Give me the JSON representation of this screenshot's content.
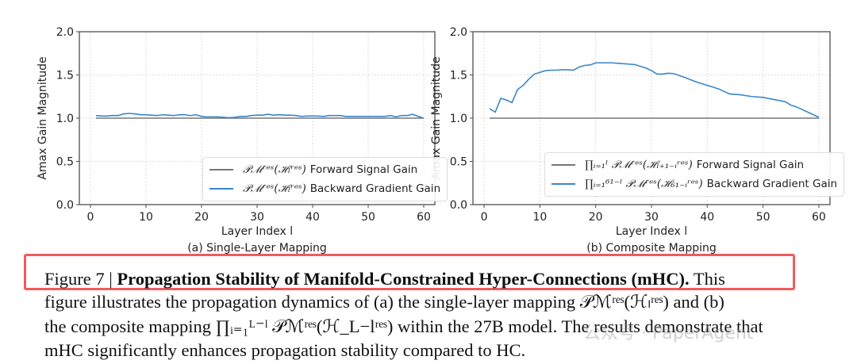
{
  "chart_data": [
    {
      "type": "line",
      "subtitle": "(a) Single-Layer Mapping",
      "xlabel": "Layer Index l",
      "ylabel": "Amax Gain Magnitude",
      "xlim": [
        -2,
        62
      ],
      "ylim": [
        0.0,
        2.0
      ],
      "xticks": [
        "0",
        "10",
        "20",
        "30",
        "40",
        "50",
        "60"
      ],
      "yticks": [
        "0.0",
        "0.5",
        "1.0",
        "1.5",
        "2.0"
      ],
      "grid": true,
      "legend_position": "lower-right",
      "series": [
        {
          "name": "Forward Signal Gain",
          "math": "𝒫ℳʳᵉˢ(ℋₗʳᵉˢ)",
          "color": "#777777",
          "x": [
            1,
            60
          ],
          "y": [
            1.0,
            1.0
          ]
        },
        {
          "name": "Backward Gradient Gain",
          "math": "𝒫ℳʳᵉˢ(ℋₗʳᵉˢ)",
          "color": "#3a86c8",
          "x": [
            1,
            2,
            3,
            4,
            5,
            6,
            7,
            8,
            9,
            10,
            11,
            12,
            13,
            14,
            15,
            16,
            17,
            18,
            19,
            20,
            21,
            22,
            23,
            24,
            25,
            26,
            27,
            28,
            29,
            30,
            31,
            32,
            33,
            34,
            35,
            36,
            37,
            38,
            39,
            40,
            41,
            42,
            43,
            44,
            45,
            46,
            47,
            48,
            49,
            50,
            51,
            52,
            53,
            54,
            55,
            56,
            57,
            58,
            59,
            60
          ],
          "y": [
            1.03,
            1.025,
            1.025,
            1.03,
            1.03,
            1.05,
            1.055,
            1.05,
            1.04,
            1.04,
            1.035,
            1.03,
            1.04,
            1.035,
            1.03,
            1.04,
            1.04,
            1.03,
            1.04,
            1.02,
            1.015,
            1.015,
            1.015,
            1.01,
            1.005,
            1.01,
            1.02,
            1.02,
            1.03,
            1.035,
            1.035,
            1.045,
            1.035,
            1.04,
            1.035,
            1.035,
            1.03,
            1.02,
            1.025,
            1.025,
            1.025,
            1.02,
            1.03,
            1.03,
            1.03,
            1.02,
            1.02,
            1.02,
            1.02,
            1.02,
            1.02,
            1.02,
            1.02,
            1.03,
            1.015,
            1.03,
            1.03,
            1.045,
            1.02,
            1.0
          ]
        }
      ]
    },
    {
      "type": "line",
      "subtitle": "(b) Composite Mapping",
      "xlabel": "Layer Index l",
      "ylabel": "Amax Gain Magnitude",
      "xlim": [
        -2,
        62
      ],
      "ylim": [
        0.0,
        2.0
      ],
      "xticks": [
        "0",
        "10",
        "20",
        "30",
        "40",
        "50",
        "60"
      ],
      "yticks": [
        "0.0",
        "0.5",
        "1.0",
        "1.5",
        "2.0"
      ],
      "grid": true,
      "legend_position": "lower-right",
      "series": [
        {
          "name": "Forward Signal Gain",
          "math": "∏ᵢ₌₁ˡ 𝒫ℳʳᵉˢ(ℋₗ₊₁₋ᵢʳᵉˢ)",
          "color": "#777777",
          "x": [
            1,
            60
          ],
          "y": [
            1.0,
            1.0
          ]
        },
        {
          "name": "Backward Gradient Gain",
          "math": "∏ᵢ₌₁⁶¹⁻ˡ 𝒫ℳʳᵉˢ(ℋ₆₁₋ᵢʳᵉˢ)",
          "color": "#3a86c8",
          "x": [
            1,
            2,
            3,
            4,
            5,
            6,
            7,
            8,
            9,
            10,
            11,
            12,
            13,
            14,
            15,
            16,
            17,
            18,
            19,
            20,
            21,
            22,
            23,
            24,
            25,
            26,
            27,
            28,
            29,
            30,
            31,
            32,
            33,
            34,
            36,
            38,
            40,
            42,
            44,
            46,
            48,
            50,
            52,
            54,
            55,
            56,
            58,
            60
          ],
          "y": [
            1.11,
            1.07,
            1.23,
            1.21,
            1.18,
            1.33,
            1.38,
            1.45,
            1.51,
            1.53,
            1.55,
            1.555,
            1.555,
            1.56,
            1.56,
            1.555,
            1.59,
            1.61,
            1.615,
            1.64,
            1.64,
            1.64,
            1.64,
            1.635,
            1.63,
            1.625,
            1.62,
            1.6,
            1.58,
            1.55,
            1.51,
            1.51,
            1.52,
            1.515,
            1.47,
            1.42,
            1.38,
            1.34,
            1.28,
            1.27,
            1.25,
            1.24,
            1.215,
            1.19,
            1.15,
            1.13,
            1.07,
            1.01
          ]
        }
      ]
    }
  ],
  "caption": {
    "label": "Figure 7 | ",
    "title": "Propagation Stability of Manifold-Constrained Hyper-Connections (mHC).",
    "line1_end": " This",
    "line2": "figure illustrates the propagation dynamics of (a) the single-layer mapping 𝒫ℳʳᵉˢ(ℋₗʳᵉˢ) and (b)",
    "line3": "the composite mapping ∏ᵢ₌₁ᴸ⁻ˡ 𝒫ℳʳᵉˢ(ℋ_L−lʳᵉˢ) within the 27B model. The results demonstrate that",
    "line4": "mHC significantly enhances propagation stability compared to HC."
  },
  "watermark": "公众号 · PaperAgent",
  "highlight_color": "#f05a5e"
}
